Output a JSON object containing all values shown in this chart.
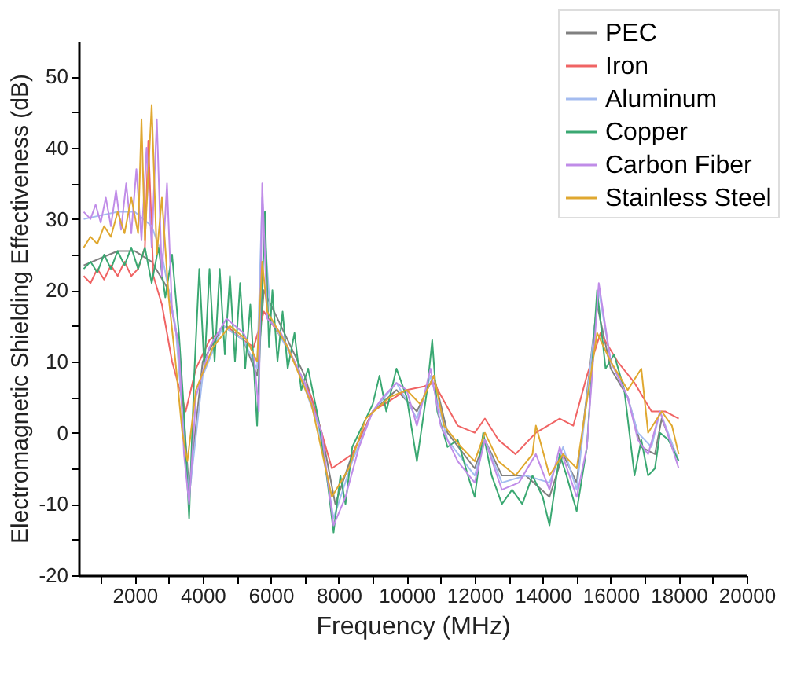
{
  "chart_data": {
    "type": "line",
    "xlabel": "Frequency (MHz)",
    "ylabel": "Electromagnetic Shielding Effectiveness (dB)",
    "xlim": [
      350,
      20000
    ],
    "ylim": [
      -20,
      55
    ],
    "xticks": [
      {
        "value": 1000,
        "label": null
      },
      2000,
      {
        "value": 3000,
        "label": null
      },
      4000,
      {
        "value": 5000,
        "label": null
      },
      6000,
      {
        "value": 7000,
        "label": null
      },
      8000,
      {
        "value": 9000,
        "label": null
      },
      10000,
      {
        "value": 11000,
        "label": null
      },
      12000,
      {
        "value": 13000,
        "label": null
      },
      14000,
      {
        "value": 15000,
        "label": null
      },
      16000,
      {
        "value": 17000,
        "label": null
      },
      18000,
      {
        "value": 19000,
        "label": null
      },
      20000
    ],
    "yticks": [
      -20,
      {
        "value": -15,
        "label": null
      },
      -10,
      {
        "value": -5,
        "label": null
      },
      0,
      {
        "value": 5,
        "label": null
      },
      10,
      {
        "value": 15,
        "label": null
      },
      20,
      {
        "value": 25,
        "label": null
      },
      30,
      {
        "value": 35,
        "label": null
      },
      40,
      {
        "value": 45,
        "label": null
      },
      50
    ],
    "grid": false,
    "legend": "top right",
    "marker": "none",
    "line_style": "solid",
    "series": [
      {
        "name": "PEC",
        "color": "#808080",
        "x": [
          500,
          1000,
          1500,
          2000,
          2500,
          3000,
          3300,
          3600,
          4000,
          4600,
          5200,
          5600,
          5800,
          6300,
          7000,
          7500,
          7900,
          8400,
          9000,
          9700,
          10300,
          10800,
          11200,
          12000,
          12300,
          12800,
          13500,
          14200,
          14600,
          15000,
          15600,
          16000,
          16500,
          16900,
          17300,
          17500,
          18000
        ],
        "values": [
          23.5,
          24.5,
          25.5,
          25.5,
          24,
          20,
          12,
          -8,
          10,
          15,
          13,
          8,
          20,
          15,
          8,
          0,
          -10,
          -3,
          3,
          6,
          3,
          8,
          0,
          -5,
          -1,
          -6,
          -6,
          -9,
          -3,
          -7,
          18,
          9,
          5,
          -2,
          -3,
          2,
          -4
        ]
      },
      {
        "name": "Iron",
        "color": "#f06464",
        "x": [
          500,
          700,
          900,
          1100,
          1300,
          1500,
          1700,
          1900,
          2100,
          2300,
          2400,
          2550,
          2800,
          3100,
          3500,
          3800,
          4200,
          4700,
          5200,
          5500,
          5800,
          6500,
          7200,
          7800,
          8400,
          9000,
          10000,
          10500,
          10800,
          11500,
          12000,
          12300,
          12700,
          13200,
          13800,
          14500,
          14900,
          15300,
          15700,
          16200,
          16700,
          17200,
          17600,
          18000
        ],
        "values": [
          22,
          21,
          23,
          21.5,
          23.5,
          22,
          24,
          22,
          23,
          26,
          41,
          22,
          18,
          10,
          3,
          9,
          13,
          15,
          13,
          12,
          17,
          12,
          5,
          -5,
          -3,
          3,
          6,
          6.5,
          7,
          1,
          0,
          2,
          -1,
          -3,
          0,
          2,
          1,
          8,
          14,
          10,
          7,
          3,
          3,
          2
        ]
      },
      {
        "name": "Aluminum",
        "color": "#a4bcf0",
        "x": [
          500,
          1000,
          1500,
          2000,
          2500,
          2800,
          3200,
          3600,
          4000,
          4600,
          5200,
          5600,
          5750,
          6000,
          6800,
          7400,
          7850,
          8400,
          9000,
          9700,
          10300,
          10700,
          11200,
          12000,
          12300,
          12800,
          13500,
          14200,
          14600,
          15000,
          15650,
          16000,
          16500,
          16800,
          17200,
          17450,
          18000
        ],
        "values": [
          30,
          30.5,
          31,
          31,
          29,
          25,
          15,
          -9,
          8,
          15,
          13,
          9,
          33,
          16,
          9,
          1,
          -12,
          -4,
          3,
          7,
          2,
          8,
          -1,
          -6,
          -1,
          -7,
          -6,
          -7,
          -2,
          -8,
          20,
          10,
          5,
          0,
          -2,
          3,
          -4
        ]
      },
      {
        "name": "Copper",
        "color": "#3aa872",
        "x": [
          500,
          700,
          900,
          1100,
          1300,
          1500,
          1700,
          1900,
          2100,
          2300,
          2500,
          2700,
          2900,
          3100,
          3300,
          3450,
          3600,
          3750,
          3900,
          4050,
          4200,
          4350,
          4500,
          4650,
          4800,
          4950,
          5100,
          5250,
          5400,
          5600,
          5830,
          5950,
          6050,
          6200,
          6350,
          6500,
          6700,
          6900,
          7100,
          7400,
          7650,
          7850,
          8050,
          8200,
          8400,
          8700,
          9000,
          9200,
          9400,
          9700,
          10000,
          10300,
          10600,
          10750,
          10900,
          11200,
          11500,
          11800,
          12000,
          12250,
          12500,
          12800,
          13100,
          13400,
          13700,
          14000,
          14200,
          14500,
          14700,
          15000,
          15300,
          15600,
          15850,
          16100,
          16400,
          16700,
          16900,
          17100,
          17300,
          17450,
          17700,
          18000
        ],
        "values": [
          23,
          24,
          22.5,
          25,
          23,
          25.5,
          23.5,
          26,
          23,
          26,
          21,
          26,
          19,
          25,
          14,
          3,
          -12,
          8,
          23,
          9,
          23,
          10,
          23,
          11,
          22,
          10,
          21,
          9,
          18,
          1,
          31,
          12,
          20,
          10,
          17,
          9,
          14,
          6,
          9,
          2,
          -6,
          -14,
          -6,
          -10,
          -2,
          1,
          4,
          8,
          3,
          9,
          5,
          -4,
          6,
          13,
          3,
          -2,
          -1,
          -6,
          -9,
          0,
          -6,
          -10,
          -8,
          -10,
          -6,
          -9,
          -13,
          -3,
          -6,
          -11,
          -2,
          20,
          9,
          11,
          6,
          -6,
          -1,
          -6,
          -5,
          0,
          -1,
          -4
        ]
      },
      {
        "name": "Carbon Fiber",
        "color": "#c08ce8",
        "x": [
          500,
          700,
          850,
          1000,
          1150,
          1300,
          1450,
          1600,
          1750,
          1900,
          2050,
          2200,
          2350,
          2500,
          2650,
          2800,
          2950,
          3100,
          3300,
          3450,
          3600,
          3800,
          4200,
          4700,
          5200,
          5500,
          5650,
          5750,
          5900,
          6300,
          7000,
          7500,
          7850,
          8200,
          8600,
          9000,
          9300,
          9700,
          10000,
          10300,
          10700,
          11000,
          11500,
          12000,
          12300,
          12800,
          13300,
          13800,
          14200,
          14500,
          15000,
          15300,
          15650,
          16000,
          16500,
          16800,
          17100,
          17450,
          17800,
          18000
        ],
        "values": [
          31,
          30,
          32,
          29.5,
          33,
          29,
          34,
          28.5,
          35,
          28,
          37,
          27,
          40,
          26,
          44,
          22,
          35,
          17,
          12,
          -3,
          -10,
          5,
          12,
          16,
          14,
          11,
          3,
          35,
          16,
          14,
          7,
          0,
          -13,
          -9,
          -2,
          3,
          5,
          7,
          6,
          1,
          9,
          1,
          -4,
          -7,
          -1,
          -8,
          -7,
          -3,
          -8,
          -2,
          -9,
          -2,
          21,
          10,
          5,
          -1,
          -3,
          3,
          -2,
          -5
        ]
      },
      {
        "name": "Stainless Steel",
        "color": "#e0a830",
        "x": [
          500,
          700,
          900,
          1100,
          1300,
          1500,
          1700,
          1900,
          2100,
          2200,
          2300,
          2500,
          2650,
          2800,
          3000,
          3200,
          3400,
          3550,
          3800,
          4300,
          4800,
          5300,
          5600,
          5750,
          5900,
          6500,
          7200,
          7800,
          8300,
          8800,
          9500,
          10000,
          10400,
          10800,
          11100,
          11600,
          12000,
          12300,
          12700,
          13200,
          13700,
          13800,
          14200,
          14600,
          15000,
          15600,
          16000,
          16500,
          16900,
          17100,
          17500,
          17800,
          18000
        ],
        "values": [
          26,
          27.5,
          26.5,
          29,
          27.5,
          31,
          28,
          33,
          28,
          44,
          27,
          46,
          25,
          33,
          19,
          10,
          0,
          -4,
          6,
          12,
          15,
          13,
          10,
          24,
          17,
          12,
          4,
          -9,
          -5,
          2,
          5,
          6,
          4,
          8,
          1,
          -2,
          -4,
          0,
          -4,
          -6,
          -3,
          1,
          -6,
          -3,
          -5,
          14,
          10,
          6,
          9,
          0,
          3,
          1,
          -3
        ]
      }
    ]
  }
}
